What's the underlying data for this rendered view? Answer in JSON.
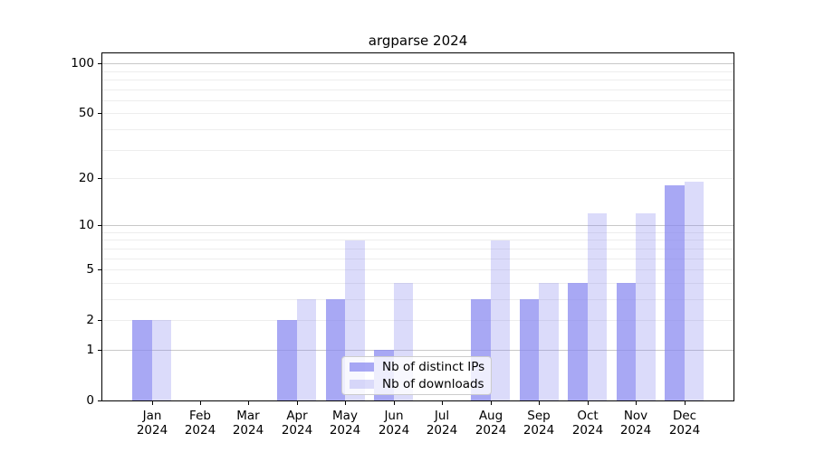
{
  "title": "argparse 2024",
  "legend": {
    "items": [
      {
        "label": "Nb of distinct IPs"
      },
      {
        "label": "Nb of downloads"
      }
    ],
    "position": "lower center"
  },
  "chart_data": {
    "type": "bar",
    "title": "argparse 2024",
    "categories": [
      "Jan 2024",
      "Feb 2024",
      "Mar 2024",
      "Apr 2024",
      "May 2024",
      "Jun 2024",
      "Jul 2024",
      "Aug 2024",
      "Sep 2024",
      "Oct 2024",
      "Nov 2024",
      "Dec 2024"
    ],
    "x_tick_lines": [
      [
        "Jan",
        "2024"
      ],
      [
        "Feb",
        "2024"
      ],
      [
        "Mar",
        "2024"
      ],
      [
        "Apr",
        "2024"
      ],
      [
        "May",
        "2024"
      ],
      [
        "Jun",
        "2024"
      ],
      [
        "Jul",
        "2024"
      ],
      [
        "Aug",
        "2024"
      ],
      [
        "Sep",
        "2024"
      ],
      [
        "Oct",
        "2024"
      ],
      [
        "Nov",
        "2024"
      ],
      [
        "Dec",
        "2024"
      ]
    ],
    "series": [
      {
        "name": "Nb of distinct IPs",
        "color": "#8888f0",
        "alpha": 0.73,
        "values": [
          2,
          0,
          0,
          2,
          3,
          1,
          0,
          3,
          3,
          4,
          4,
          18
        ]
      },
      {
        "name": "Nb of downloads",
        "color": "#8888f0",
        "alpha": 0.3,
        "values": [
          2,
          0,
          0,
          3,
          8,
          4,
          0,
          8,
          4,
          12,
          12,
          19
        ]
      }
    ],
    "yscale": "log1p",
    "ylim": [
      0,
      116
    ],
    "y_tick_values": [
      0,
      1,
      2,
      5,
      10,
      20,
      50,
      100
    ],
    "y_tick_labels": [
      "0",
      "1",
      "2",
      "5",
      "10",
      "20",
      "50",
      "100"
    ],
    "y_major_gridlines": [
      1,
      10,
      100
    ],
    "y_minor_gridlines": [
      2,
      3,
      4,
      5,
      6,
      7,
      8,
      9,
      20,
      30,
      40,
      50,
      60,
      70,
      80,
      90
    ],
    "grid": true,
    "legend_position": "lower center",
    "xlabel": "",
    "ylabel": ""
  },
  "colors": {
    "bar_ips_visible": "#a8a8f2",
    "bar_downloads_visible": "#dbdbf7",
    "grid_major": "#c8c8c8",
    "grid_minor": "#ededed",
    "spine": "#000000",
    "legend_border": "#cccccc",
    "legend_bg": "rgba(255,255,255,0.8)",
    "text": "#000000"
  }
}
